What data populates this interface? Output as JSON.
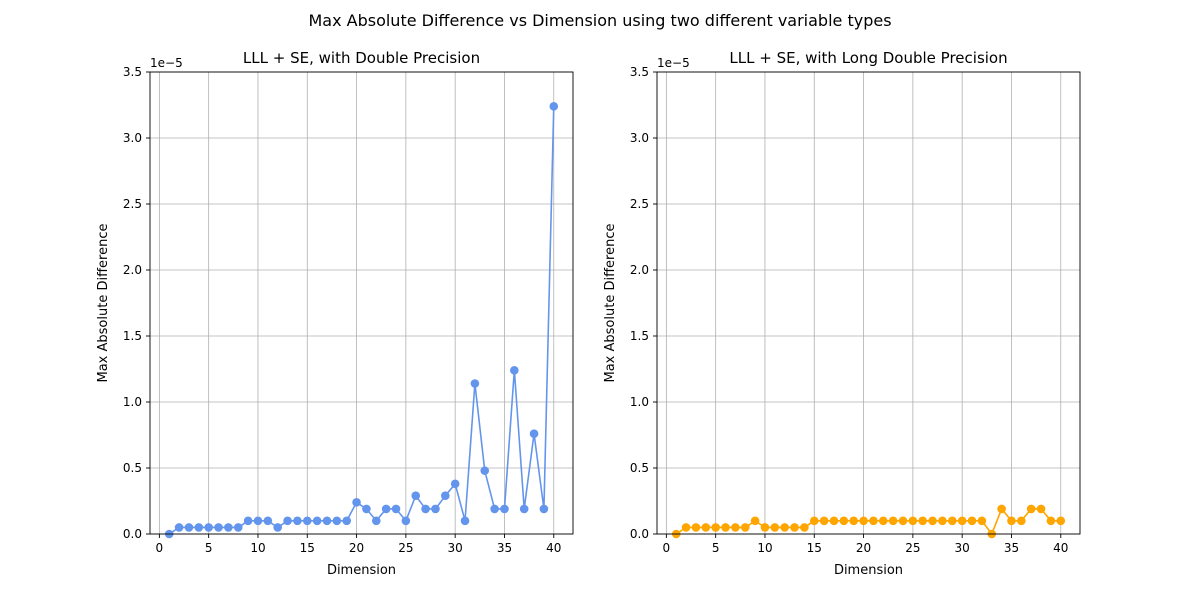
{
  "figure": {
    "suptitle": "Max Absolute Difference vs Dimension using two different variable types"
  },
  "chart_data": [
    {
      "type": "line",
      "title": "LLL + SE, with Double Precision",
      "xlabel": "Dimension",
      "ylabel": "Max Absolute Difference",
      "offset_label": "1e−5",
      "xlim": [
        -0.95,
        41.95
      ],
      "ylim": [
        0,
        3.5
      ],
      "y_scale_exponent": -5,
      "xticks": [
        0,
        5,
        10,
        15,
        20,
        25,
        30,
        35,
        40
      ],
      "yticks": [
        0.0,
        0.5,
        1.0,
        1.5,
        2.0,
        2.5,
        3.0,
        3.5
      ],
      "ytick_labels": [
        "0.0",
        "0.5",
        "1.0",
        "1.5",
        "2.0",
        "2.5",
        "3.0",
        "3.5"
      ],
      "grid": true,
      "color": "#6495ED",
      "marker": "circle",
      "x": [
        1,
        2,
        3,
        4,
        5,
        6,
        7,
        8,
        9,
        10,
        11,
        12,
        13,
        14,
        15,
        16,
        17,
        18,
        19,
        20,
        21,
        22,
        23,
        24,
        25,
        26,
        27,
        28,
        29,
        30,
        31,
        32,
        33,
        34,
        35,
        36,
        37,
        38,
        39,
        40
      ],
      "y": [
        0.0,
        0.05,
        0.05,
        0.05,
        0.05,
        0.05,
        0.05,
        0.05,
        0.1,
        0.1,
        0.1,
        0.05,
        0.1,
        0.1,
        0.1,
        0.1,
        0.1,
        0.1,
        0.1,
        0.24,
        0.19,
        0.1,
        0.19,
        0.19,
        0.1,
        0.29,
        0.19,
        0.19,
        0.29,
        0.38,
        0.1,
        1.14,
        0.48,
        0.19,
        0.19,
        1.24,
        0.19,
        0.76,
        0.19,
        3.24
      ]
    },
    {
      "type": "line",
      "title": "LLL + SE, with Long Double Precision",
      "xlabel": "Dimension",
      "ylabel": "Max Absolute Difference",
      "offset_label": "1e−5",
      "xlim": [
        -0.95,
        41.95
      ],
      "ylim": [
        0,
        3.5
      ],
      "y_scale_exponent": -5,
      "xticks": [
        0,
        5,
        10,
        15,
        20,
        25,
        30,
        35,
        40
      ],
      "yticks": [
        0.0,
        0.5,
        1.0,
        1.5,
        2.0,
        2.5,
        3.0,
        3.5
      ],
      "ytick_labels": [
        "0.0",
        "0.5",
        "1.0",
        "1.5",
        "2.0",
        "2.5",
        "3.0",
        "3.5"
      ],
      "grid": true,
      "color": "#FFA500",
      "marker": "circle",
      "x": [
        1,
        2,
        3,
        4,
        5,
        6,
        7,
        8,
        9,
        10,
        11,
        12,
        13,
        14,
        15,
        16,
        17,
        18,
        19,
        20,
        21,
        22,
        23,
        24,
        25,
        26,
        27,
        28,
        29,
        30,
        31,
        32,
        33,
        34,
        35,
        36,
        37,
        38,
        39,
        40
      ],
      "y": [
        0.0,
        0.05,
        0.05,
        0.05,
        0.05,
        0.05,
        0.05,
        0.05,
        0.1,
        0.05,
        0.05,
        0.05,
        0.05,
        0.05,
        0.1,
        0.1,
        0.1,
        0.1,
        0.1,
        0.1,
        0.1,
        0.1,
        0.1,
        0.1,
        0.1,
        0.1,
        0.1,
        0.1,
        0.1,
        0.1,
        0.1,
        0.1,
        0.0,
        0.19,
        0.1,
        0.1,
        0.19,
        0.19,
        0.1,
        0.1
      ]
    }
  ]
}
